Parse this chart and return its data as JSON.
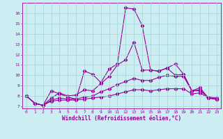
{
  "xlabel": "Windchill (Refroidissement éolien,°C)",
  "background_color": "#cceef2",
  "grid_color": "#aad8dc",
  "line_color": "#990099",
  "xlim": [
    -0.5,
    23.5
  ],
  "ylim": [
    6.8,
    17.0
  ],
  "yticks": [
    7,
    8,
    9,
    10,
    11,
    12,
    13,
    14,
    15,
    16
  ],
  "xticks": [
    0,
    1,
    2,
    3,
    4,
    5,
    6,
    7,
    8,
    9,
    10,
    11,
    12,
    13,
    14,
    15,
    16,
    17,
    18,
    19,
    20,
    21,
    22,
    23
  ],
  "series": [
    [
      8.0,
      7.3,
      7.1,
      8.5,
      8.2,
      7.9,
      7.7,
      10.4,
      10.1,
      9.3,
      10.6,
      11.1,
      16.5,
      16.4,
      14.8,
      10.5,
      10.4,
      10.7,
      11.1,
      10.1,
      8.5,
      8.8,
      7.8,
      7.7
    ],
    [
      8.0,
      7.3,
      7.1,
      7.8,
      8.3,
      8.0,
      8.1,
      8.6,
      8.5,
      9.2,
      9.9,
      11.0,
      11.5,
      13.2,
      10.5,
      10.5,
      10.4,
      10.7,
      10.0,
      10.1,
      8.5,
      8.6,
      7.8,
      7.7
    ],
    [
      8.0,
      7.3,
      7.1,
      7.6,
      7.8,
      7.7,
      7.7,
      7.9,
      8.0,
      8.4,
      8.7,
      9.1,
      9.4,
      9.7,
      9.5,
      9.5,
      9.8,
      10.0,
      9.9,
      9.9,
      8.5,
      8.5,
      7.9,
      7.8
    ],
    [
      8.0,
      7.3,
      7.1,
      7.5,
      7.6,
      7.6,
      7.6,
      7.7,
      7.8,
      7.9,
      8.0,
      8.2,
      8.4,
      8.6,
      8.6,
      8.5,
      8.6,
      8.7,
      8.7,
      8.7,
      8.2,
      8.3,
      7.8,
      7.7
    ]
  ]
}
